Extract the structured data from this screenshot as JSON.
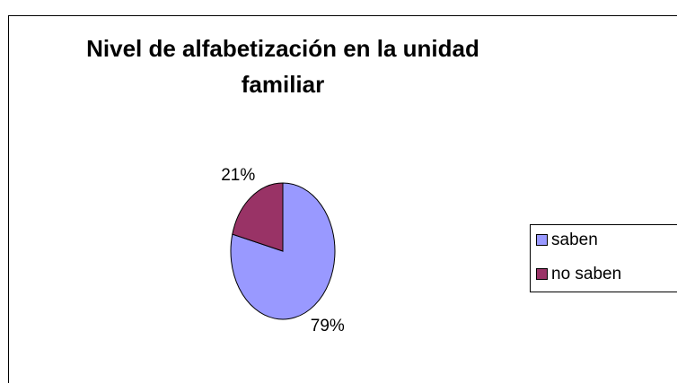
{
  "chart_data": {
    "type": "pie",
    "title": "Nivel de alfabetización en la unidad familiar",
    "categories": [
      "saben",
      "no saben"
    ],
    "values": [
      79,
      21
    ],
    "value_labels": [
      "79%",
      "21%"
    ],
    "colors": [
      "#9999ff",
      "#993366"
    ],
    "legend": "right"
  }
}
